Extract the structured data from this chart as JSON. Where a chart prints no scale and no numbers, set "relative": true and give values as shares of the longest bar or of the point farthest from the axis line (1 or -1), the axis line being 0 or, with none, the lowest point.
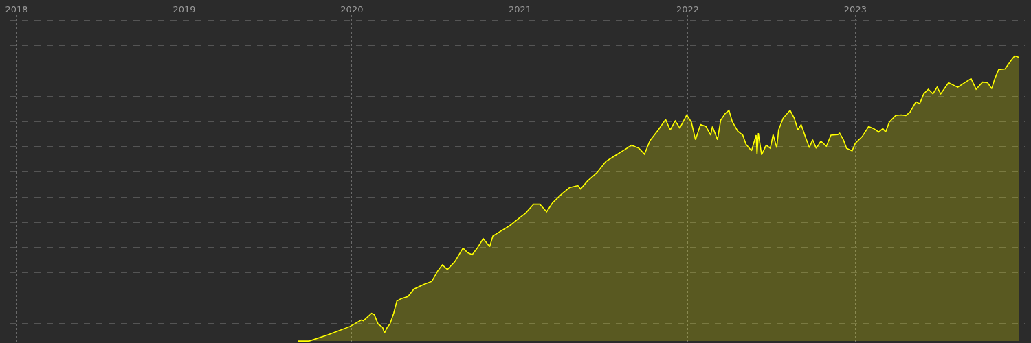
{
  "chart_data": {
    "type": "area",
    "relative": true,
    "grid": true,
    "line_style": "solid",
    "marker": "none",
    "xlim": [
      "2017-12-17",
      "2024-01-05"
    ],
    "xticks": [
      "2018",
      "2019",
      "2020",
      "2021",
      "2022",
      "2023",
      {
        "value": "2024",
        "label": null
      }
    ],
    "x": [
      "2019-09-05",
      "2019-09-30",
      "2019-11-09",
      "2019-12-28",
      "2020-01-22",
      "2020-01-26",
      "2020-02-13",
      "2020-02-19",
      "2020-02-27",
      "2020-03-08",
      "2020-03-12",
      "2020-03-18",
      "2020-03-24",
      "2020-04-01",
      "2020-04-08",
      "2020-04-18",
      "2020-05-02",
      "2020-05-15",
      "2020-06-05",
      "2020-06-23",
      "2020-07-06",
      "2020-07-16",
      "2020-07-27",
      "2020-08-12",
      "2020-08-30",
      "2020-09-09",
      "2020-09-19",
      "2020-09-30",
      "2020-10-13",
      "2020-10-27",
      "2020-11-03",
      "2020-11-24",
      "2020-12-10",
      "2020-12-28",
      "2021-01-13",
      "2021-01-31",
      "2021-02-13",
      "2021-02-28",
      "2021-03-13",
      "2021-04-03",
      "2021-04-19",
      "2021-05-07",
      "2021-05-13",
      "2021-05-28",
      "2021-06-18",
      "2021-07-07",
      "2021-07-28",
      "2021-08-17",
      "2021-09-01",
      "2021-09-17",
      "2021-09-29",
      "2021-10-11",
      "2021-10-29",
      "2021-11-14",
      "2021-11-24",
      "2021-12-05",
      "2021-12-15",
      "2021-12-30",
      "2022-01-09",
      "2022-01-18",
      "2022-01-29",
      "2022-02-10",
      "2022-02-20",
      "2022-02-24",
      "2022-03-07",
      "2022-03-14",
      "2022-03-24",
      "2022-04-01",
      "2022-04-08",
      "2022-04-20",
      "2022-05-01",
      "2022-05-08",
      "2022-05-20",
      "2022-05-30",
      "2022-06-01",
      "2022-06-04",
      "2022-06-11",
      "2022-06-21",
      "2022-06-30",
      "2022-07-06",
      "2022-07-14",
      "2022-07-18",
      "2022-07-28",
      "2022-08-12",
      "2022-08-21",
      "2022-08-29",
      "2022-09-05",
      "2022-09-15",
      "2022-09-23",
      "2022-09-30",
      "2022-10-08",
      "2022-10-18",
      "2022-10-30",
      "2022-11-09",
      "2022-11-24",
      "2022-11-28",
      "2022-12-06",
      "2022-12-13",
      "2022-12-25",
      "2023-01-01",
      "2023-01-16",
      "2023-01-30",
      "2023-02-10",
      "2023-02-21",
      "2023-03-02",
      "2023-03-08",
      "2023-03-16",
      "2023-03-30",
      "2023-04-11",
      "2023-04-21",
      "2023-04-30",
      "2023-05-13",
      "2023-05-21",
      "2023-05-30",
      "2023-06-09",
      "2023-06-19",
      "2023-06-28",
      "2023-07-06",
      "2023-07-23",
      "2023-08-12",
      "2023-08-29",
      "2023-09-10",
      "2023-09-21",
      "2023-10-05",
      "2023-10-16",
      "2023-10-25",
      "2023-10-31",
      "2023-11-09",
      "2023-11-23",
      "2023-12-07",
      "2023-12-14",
      "2023-12-23"
    ],
    "series": [
      {
        "color": "#ffff00",
        "values": [
          0,
          0,
          0.021,
          0.051,
          0.074,
          0.071,
          0.097,
          0.092,
          0.06,
          0.048,
          0.028,
          0.048,
          0.06,
          0.097,
          0.14,
          0.149,
          0.156,
          0.182,
          0.198,
          0.209,
          0.246,
          0.267,
          0.251,
          0.278,
          0.326,
          0.31,
          0.303,
          0.326,
          0.359,
          0.331,
          0.368,
          0.389,
          0.405,
          0.428,
          0.448,
          0.48,
          0.48,
          0.453,
          0.485,
          0.517,
          0.538,
          0.545,
          0.533,
          0.561,
          0.591,
          0.63,
          0.651,
          0.671,
          0.687,
          0.676,
          0.655,
          0.703,
          0.74,
          0.777,
          0.74,
          0.772,
          0.747,
          0.793,
          0.768,
          0.706,
          0.759,
          0.752,
          0.722,
          0.752,
          0.706,
          0.775,
          0.798,
          0.809,
          0.77,
          0.736,
          0.722,
          0.69,
          0.667,
          0.722,
          0.655,
          0.729,
          0.653,
          0.687,
          0.676,
          0.724,
          0.678,
          0.74,
          0.782,
          0.809,
          0.782,
          0.74,
          0.759,
          0.713,
          0.678,
          0.706,
          0.676,
          0.701,
          0.683,
          0.722,
          0.724,
          0.729,
          0.706,
          0.676,
          0.667,
          0.694,
          0.717,
          0.752,
          0.745,
          0.733,
          0.745,
          0.733,
          0.768,
          0.791,
          0.793,
          0.791,
          0.802,
          0.839,
          0.832,
          0.867,
          0.883,
          0.867,
          0.89,
          0.867,
          0.906,
          0.89,
          0.908,
          0.92,
          0.883,
          0.908,
          0.906,
          0.885,
          0.917,
          0.952,
          0.954,
          0.986,
          1,
          0.995
        ]
      }
    ]
  }
}
